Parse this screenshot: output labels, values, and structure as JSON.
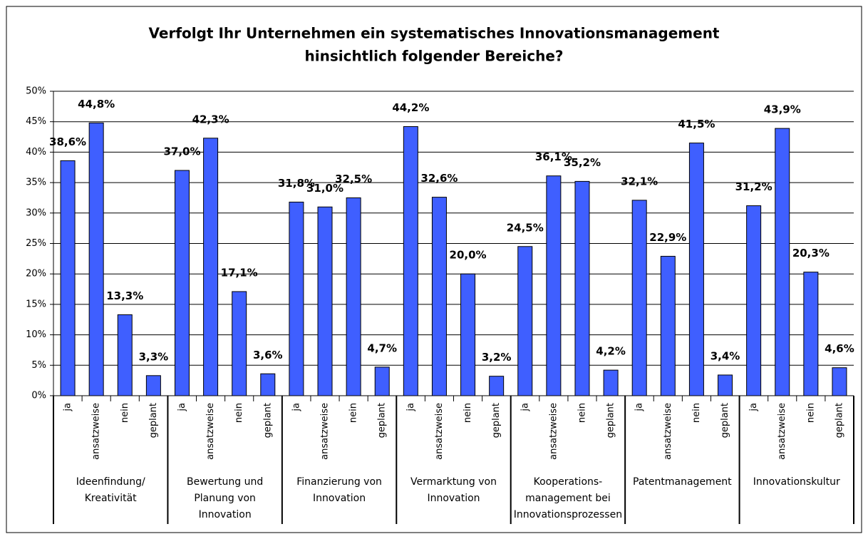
{
  "chart_data": {
    "type": "bar",
    "title": [
      "Verfolgt Ihr Unternehmen ein systematisches Innovationsmanagement",
      "hinsichtlich folgender Bereiche?"
    ],
    "color": "#3f5fff",
    "ylim": [
      0,
      50
    ],
    "yticks": [
      {
        "value": 0,
        "label": "0%"
      },
      {
        "value": 5,
        "label": "5%"
      },
      {
        "value": 10,
        "label": "10%"
      },
      {
        "value": 15,
        "label": "15%"
      },
      {
        "value": 20,
        "label": "20%"
      },
      {
        "value": 25,
        "label": "25%"
      },
      {
        "value": 30,
        "label": "30%"
      },
      {
        "value": 35,
        "label": "35%"
      },
      {
        "value": 40,
        "label": "40%"
      },
      {
        "value": 45,
        "label": "45%"
      },
      {
        "value": 50,
        "label": "50%"
      }
    ],
    "grid": true,
    "groups": [
      {
        "name": [
          "Ideenfindung/",
          "Kreativität"
        ],
        "categories": [
          "ja",
          "ansatzweise",
          "nein",
          "geplant"
        ],
        "values": [
          38.6,
          44.8,
          13.3,
          3.3
        ],
        "value_labels": [
          "38,6%",
          "44,8%",
          "13,3%",
          "3,3%"
        ]
      },
      {
        "name": [
          "Bewertung und",
          "Planung von",
          "Innovation"
        ],
        "categories": [
          "ja",
          "ansatzweise",
          "nein",
          "geplant"
        ],
        "values": [
          37.0,
          42.3,
          17.1,
          3.6
        ],
        "value_labels": [
          "37,0%",
          "42,3%",
          "17,1%",
          "3,6%"
        ]
      },
      {
        "name": [
          "Finanzierung von",
          "Innovation"
        ],
        "categories": [
          "ja",
          "ansatzweise",
          "nein",
          "geplant"
        ],
        "values": [
          31.8,
          31.0,
          32.5,
          4.7
        ],
        "value_labels": [
          "31,8%",
          "31,0%",
          "32,5%",
          "4,7%"
        ]
      },
      {
        "name": [
          "Vermarktung von",
          "Innovation"
        ],
        "categories": [
          "ja",
          "ansatzweise",
          "nein",
          "geplant"
        ],
        "values": [
          44.2,
          32.6,
          20.0,
          3.2
        ],
        "value_labels": [
          "44,2%",
          "32,6%",
          "20,0%",
          "3,2%"
        ]
      },
      {
        "name": [
          "Kooperations-",
          "management bei",
          "Innovationsprozessen"
        ],
        "categories": [
          "ja",
          "ansatzweise",
          "nein",
          "geplant"
        ],
        "values": [
          24.5,
          36.1,
          35.2,
          4.2
        ],
        "value_labels": [
          "24,5%",
          "36,1%",
          "35,2%",
          "4,2%"
        ]
      },
      {
        "name": [
          "Patentmanagement"
        ],
        "categories": [
          "ja",
          "ansatzweise",
          "nein",
          "geplant"
        ],
        "values": [
          32.1,
          22.9,
          41.5,
          3.4
        ],
        "value_labels": [
          "32,1%",
          "22,9%",
          "41,5%",
          "3,4%"
        ]
      },
      {
        "name": [
          "Innovationskultur"
        ],
        "categories": [
          "ja",
          "ansatzweise",
          "nein",
          "geplant"
        ],
        "values": [
          31.2,
          43.9,
          20.3,
          4.6
        ],
        "value_labels": [
          "31,2%",
          "43,9%",
          "20,3%",
          "4,6%"
        ]
      }
    ]
  }
}
